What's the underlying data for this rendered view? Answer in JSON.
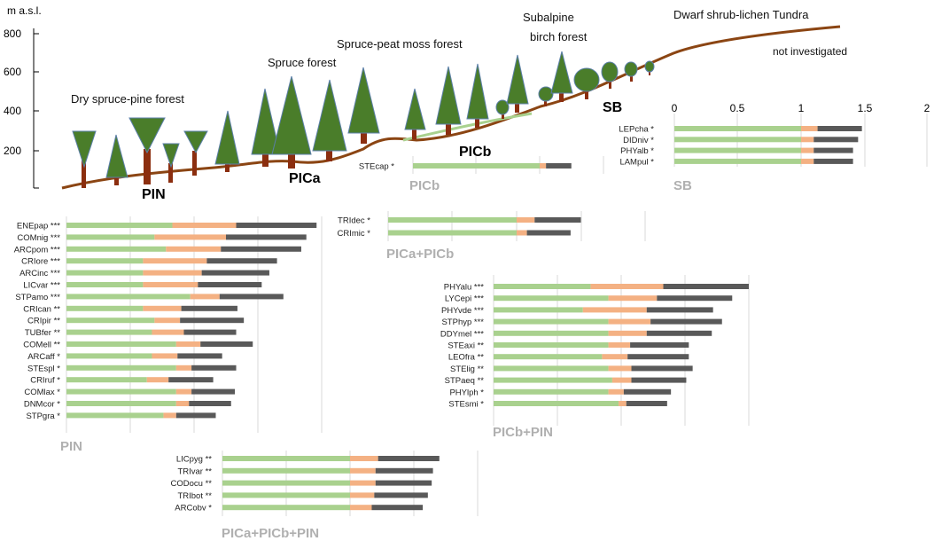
{
  "elevation_axis": {
    "title": "m a.s.l.",
    "ticks": [
      800,
      600,
      400,
      200
    ]
  },
  "zones": [
    {
      "id": "dry-spruce-pine-forest",
      "label": "Dry spruce-pine forest"
    },
    {
      "id": "spruce-forest",
      "label": "Spruce forest"
    },
    {
      "id": "spruce-peat-moss-forest",
      "label": "Spruce-peat moss forest"
    },
    {
      "id": "subalpine-birch-forest-1",
      "label": "Subalpine"
    },
    {
      "id": "subalpine-birch-forest-2",
      "label": "birch forest"
    },
    {
      "id": "dwarf-shrub-lichen-tundra",
      "label": "Dwarf shrub-lichen Tundra"
    },
    {
      "id": "not-investigated",
      "label": "not investigated"
    }
  ],
  "zone_codes": {
    "pin": "PIN",
    "pica": "PICa",
    "picb": "PICb",
    "sb": "SB"
  },
  "scale": {
    "ticks": [
      "0",
      "0.5",
      "1",
      "1.5",
      "2"
    ],
    "max": 2
  },
  "colors": {
    "green": "#a9d18e",
    "orange": "#f4b183",
    "gray": "#595959",
    "ground": "#8b4513",
    "tree": "#4a7d2a",
    "trunk": "#8b2e0f"
  },
  "panels": [
    {
      "id": "sb",
      "name": "SB",
      "rows": [
        {
          "label": "LEPcha *",
          "values": [
            1.0,
            0.13,
            0.35
          ]
        },
        {
          "label": "DIDniv *",
          "values": [
            1.0,
            0.1,
            0.35
          ]
        },
        {
          "label": "PHYalb *",
          "values": [
            1.0,
            0.1,
            0.31
          ]
        },
        {
          "label": "LAMpul *",
          "values": [
            1.0,
            0.1,
            0.31
          ]
        }
      ]
    },
    {
      "id": "picb",
      "name": "PICb",
      "rows": [
        {
          "label": "STEcap *",
          "values": [
            1.0,
            0.05,
            0.2
          ]
        }
      ]
    },
    {
      "id": "pica-picb",
      "name": "PICa+PICb",
      "rows": [
        {
          "label": "TRIdec *",
          "values": [
            1.0,
            0.14,
            0.36
          ]
        },
        {
          "label": "CRImic *",
          "values": [
            1.0,
            0.08,
            0.34
          ]
        }
      ]
    },
    {
      "id": "pin",
      "name": "PIN",
      "rows": [
        {
          "label": "ENEpap ***",
          "values": [
            0.83,
            0.5,
            0.63
          ]
        },
        {
          "label": "COMnig ***",
          "values": [
            0.69,
            0.56,
            0.63
          ]
        },
        {
          "label": "ARCpom ***",
          "values": [
            0.78,
            0.43,
            0.63
          ]
        },
        {
          "label": "CRIore ***",
          "values": [
            0.6,
            0.5,
            0.55
          ]
        },
        {
          "label": "ARCinc ***",
          "values": [
            0.6,
            0.46,
            0.53
          ]
        },
        {
          "label": "LICvar ***",
          "values": [
            0.6,
            0.43,
            0.5
          ]
        },
        {
          "label": "STPamo ***",
          "values": [
            0.97,
            0.23,
            0.5
          ]
        },
        {
          "label": "CRIcan **",
          "values": [
            0.6,
            0.3,
            0.44
          ]
        },
        {
          "label": "CRIpir **",
          "values": [
            0.69,
            0.2,
            0.5
          ]
        },
        {
          "label": "TUBfer **",
          "values": [
            0.67,
            0.25,
            0.41
          ]
        },
        {
          "label": "COMell **",
          "values": [
            0.86,
            0.19,
            0.41
          ]
        },
        {
          "label": "ARCaff *",
          "values": [
            0.67,
            0.2,
            0.35
          ]
        },
        {
          "label": "STEspl *",
          "values": [
            0.86,
            0.12,
            0.35
          ]
        },
        {
          "label": "CRIruf *",
          "values": [
            0.63,
            0.17,
            0.35
          ]
        },
        {
          "label": "COMlax *",
          "values": [
            0.86,
            0.12,
            0.34
          ]
        },
        {
          "label": "DNMcor *",
          "values": [
            0.86,
            0.1,
            0.33
          ]
        },
        {
          "label": "STPgra *",
          "values": [
            0.76,
            0.1,
            0.31
          ]
        }
      ]
    },
    {
      "id": "picb-pin",
      "name": "PICb+PIN",
      "rows": [
        {
          "label": "PHYalu ***",
          "values": [
            0.76,
            0.57,
            0.67
          ]
        },
        {
          "label": "LYCepi ***",
          "values": [
            0.9,
            0.38,
            0.59
          ]
        },
        {
          "label": "PHYvde ***",
          "values": [
            0.7,
            0.5,
            0.52
          ]
        },
        {
          "label": "STPhyp ***",
          "values": [
            0.9,
            0.33,
            0.56
          ]
        },
        {
          "label": "DDYmel ***",
          "values": [
            0.9,
            0.3,
            0.51
          ]
        },
        {
          "label": "STEaxi **",
          "values": [
            0.9,
            0.17,
            0.46
          ]
        },
        {
          "label": "LEOfra **",
          "values": [
            0.85,
            0.2,
            0.48
          ]
        },
        {
          "label": "STElig **",
          "values": [
            0.9,
            0.18,
            0.48
          ]
        },
        {
          "label": "STPaeq **",
          "values": [
            0.93,
            0.15,
            0.43
          ]
        },
        {
          "label": "PHYlph *",
          "values": [
            0.9,
            0.12,
            0.37
          ]
        },
        {
          "label": "STEsmi *",
          "values": [
            0.98,
            0.06,
            0.32
          ]
        }
      ]
    },
    {
      "id": "pica-picb-pin",
      "name": "PICa+PICb+PIN",
      "rows": [
        {
          "label": "LICpyg **",
          "values": [
            1.0,
            0.22,
            0.48
          ]
        },
        {
          "label": "TRIvar **",
          "values": [
            1.0,
            0.2,
            0.45
          ]
        },
        {
          "label": "CODocu **",
          "values": [
            1.0,
            0.2,
            0.44
          ]
        },
        {
          "label": "TRIbot **",
          "values": [
            1.0,
            0.19,
            0.42
          ]
        },
        {
          "label": "ARCobv *",
          "values": [
            1.0,
            0.17,
            0.4
          ]
        }
      ]
    }
  ]
}
